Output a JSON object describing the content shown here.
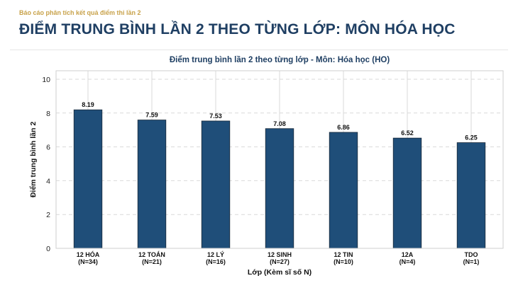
{
  "header": {
    "eyebrow": "Báo cáo phân tích kết quả điểm thi lần 2",
    "title": "ĐIỂM TRUNG BÌNH LẦN 2 THEO TỪNG LỚP: MÔN HÓA HỌC"
  },
  "chart_data": {
    "type": "bar",
    "title": "Điểm trung bình lần 2 theo từng lớp - Môn: Hóa học (HO)",
    "xlabel": "Lớp (Kèm sĩ số N)",
    "ylabel": "Điểm trung bình lần 2",
    "ylim": [
      0,
      10.5
    ],
    "yticks": [
      0,
      2,
      4,
      6,
      8,
      10
    ],
    "grid": true,
    "categories": [
      {
        "name": "12 HÓA",
        "n": "(N=34)"
      },
      {
        "name": "12 TOÁN",
        "n": "(N=21)"
      },
      {
        "name": "12 LÝ",
        "n": "(N=16)"
      },
      {
        "name": "12 SINH",
        "n": "(N=27)"
      },
      {
        "name": "12 TIN",
        "n": "(N=10)"
      },
      {
        "name": "12A",
        "n": "(N=4)"
      },
      {
        "name": "TDO",
        "n": "(N=1)"
      }
    ],
    "values": [
      8.19,
      7.59,
      7.53,
      7.08,
      6.86,
      6.52,
      6.25
    ],
    "value_labels": [
      "8.19",
      "7.59",
      "7.53",
      "7.08",
      "6.86",
      "6.52",
      "6.25"
    ],
    "bar_color": "#1f4e79"
  }
}
